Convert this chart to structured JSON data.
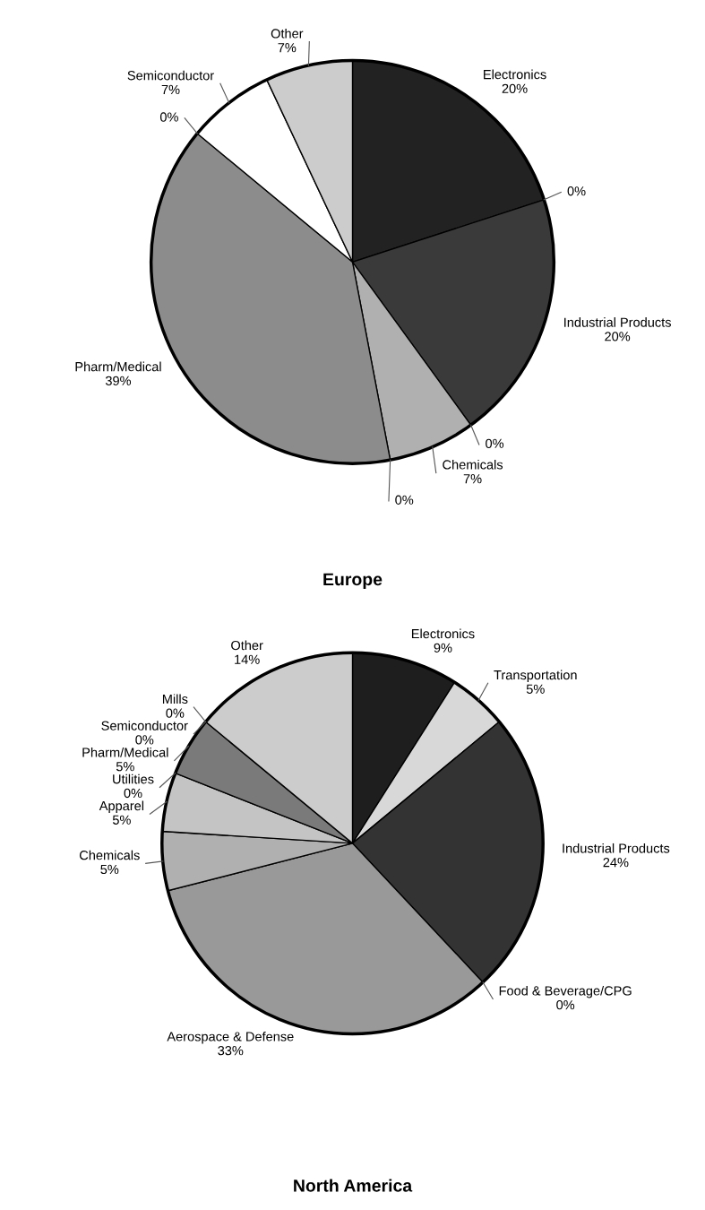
{
  "chart_data": [
    {
      "type": "pie",
      "title": "Europe",
      "categories": [
        "Electronics",
        null,
        "Industrial Products",
        null,
        "Chemicals",
        null,
        "Pharm/Medical",
        null,
        "Semiconductor",
        "Other"
      ],
      "values": [
        20,
        0,
        20,
        0,
        7,
        0,
        39,
        0,
        7,
        7
      ],
      "value_labels": [
        "20%",
        "0%",
        "20%",
        "0%",
        "7%",
        "0%",
        "39%",
        "0%",
        "7%",
        "7%"
      ],
      "colors": [
        "#222222",
        "#555555",
        "#3a3a3a",
        "#555555",
        "#b0b0b0",
        "#555555",
        "#8c8c8c",
        "#555555",
        "#ffffff",
        "#cccccc"
      ]
    },
    {
      "type": "pie",
      "title": "North America",
      "categories": [
        "Electronics",
        "Transportation",
        "Industrial Products",
        "Food & Beverage/CPG",
        "Aerospace & Defense",
        "Chemicals",
        "Apparel",
        "Utilities",
        "Pharm/Medical",
        "Mills",
        "Semiconductor",
        "Other"
      ],
      "values": [
        9,
        5,
        24,
        0,
        33,
        5,
        5,
        0,
        5,
        0,
        0,
        14
      ],
      "value_labels": [
        "9%",
        "5%",
        "24%",
        "0%",
        "33%",
        "5%",
        "5%",
        "0%",
        "5%",
        "0%",
        "0%",
        "14%"
      ],
      "colors": [
        "#1e1e1e",
        "#d8d8d8",
        "#333333",
        "#555555",
        "#999999",
        "#b0b0b0",
        "#c4c4c4",
        "#555555",
        "#7a7a7a",
        "#555555",
        "#555555",
        "#cccccc"
      ]
    }
  ]
}
